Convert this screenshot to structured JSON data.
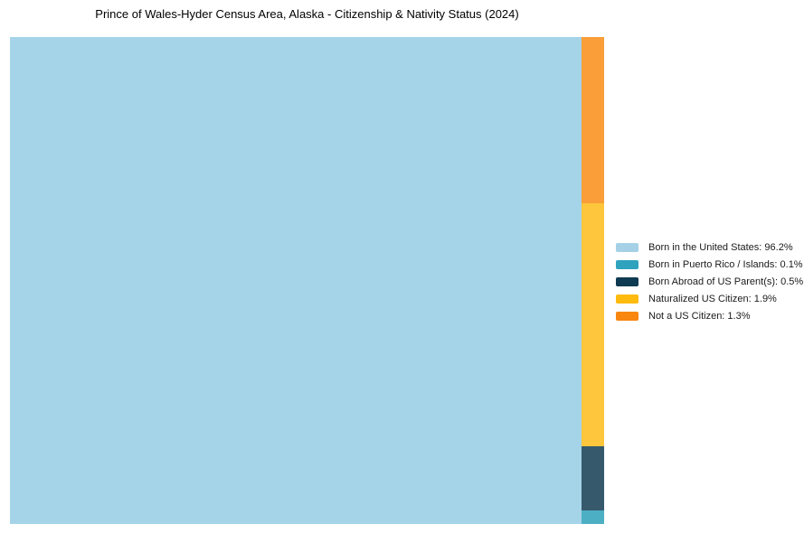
{
  "page": {
    "background": "#ffffff"
  },
  "chart_data": {
    "type": "treemap",
    "title": "Prince of Wales-Hyder Census Area, Alaska - Citizenship & Nativity Status (2024)",
    "unit": "%",
    "total": 100,
    "categories": [
      "Born in the United States",
      "Born in Puerto Rico / Islands",
      "Born Abroad of US Parent(s)",
      "Naturalized US Citizen",
      "Not a US Citizen"
    ],
    "values": [
      96.2,
      0.1,
      0.5,
      1.9,
      1.3
    ],
    "series": [
      {
        "name": "Born in the United States",
        "value": 96.2,
        "cell_color": "#A5D3E8",
        "swatch_color": "#A5D1E6",
        "slug": "born-in-the-united-states"
      },
      {
        "name": "Born in Puerto Rico / Islands",
        "value": 0.1,
        "cell_color": "#4DAFC4",
        "swatch_color": "#2FA3BE",
        "slug": "born-in-puerto-rico-islands"
      },
      {
        "name": "Born Abroad of US Parent(s)",
        "value": 0.5,
        "cell_color": "#36596C",
        "swatch_color": "#0E3A52",
        "slug": "born-abroad-of-us-parents"
      },
      {
        "name": "Naturalized US Citizen",
        "value": 1.9,
        "cell_color": "#FEC63C",
        "swatch_color": "#FEBB0E",
        "slug": "naturalized-us-citizen"
      },
      {
        "name": "Not a US Citizen",
        "value": 1.3,
        "cell_color": "#F99E38",
        "swatch_color": "#F8860F",
        "slug": "not-a-us-citizen"
      }
    ],
    "layout_hint": {
      "main_cell": "Born in the United States",
      "side_column_top_to_bottom": [
        "Not a US Citizen",
        "Naturalized US Citizen",
        "Born Abroad of US Parent(s)",
        "Born in Puerto Rico / Islands"
      ],
      "legend_position": "right-center",
      "grid": false
    }
  },
  "legend": {
    "items": [
      {
        "text": "Born in the United States: 96.2%"
      },
      {
        "text": "Born in Puerto Rico / Islands: 0.1%"
      },
      {
        "text": "Born Abroad of US Parent(s): 0.5%"
      },
      {
        "text": "Naturalized US Citizen: 1.9%"
      },
      {
        "text": "Not a US Citizen: 1.3%"
      }
    ]
  }
}
